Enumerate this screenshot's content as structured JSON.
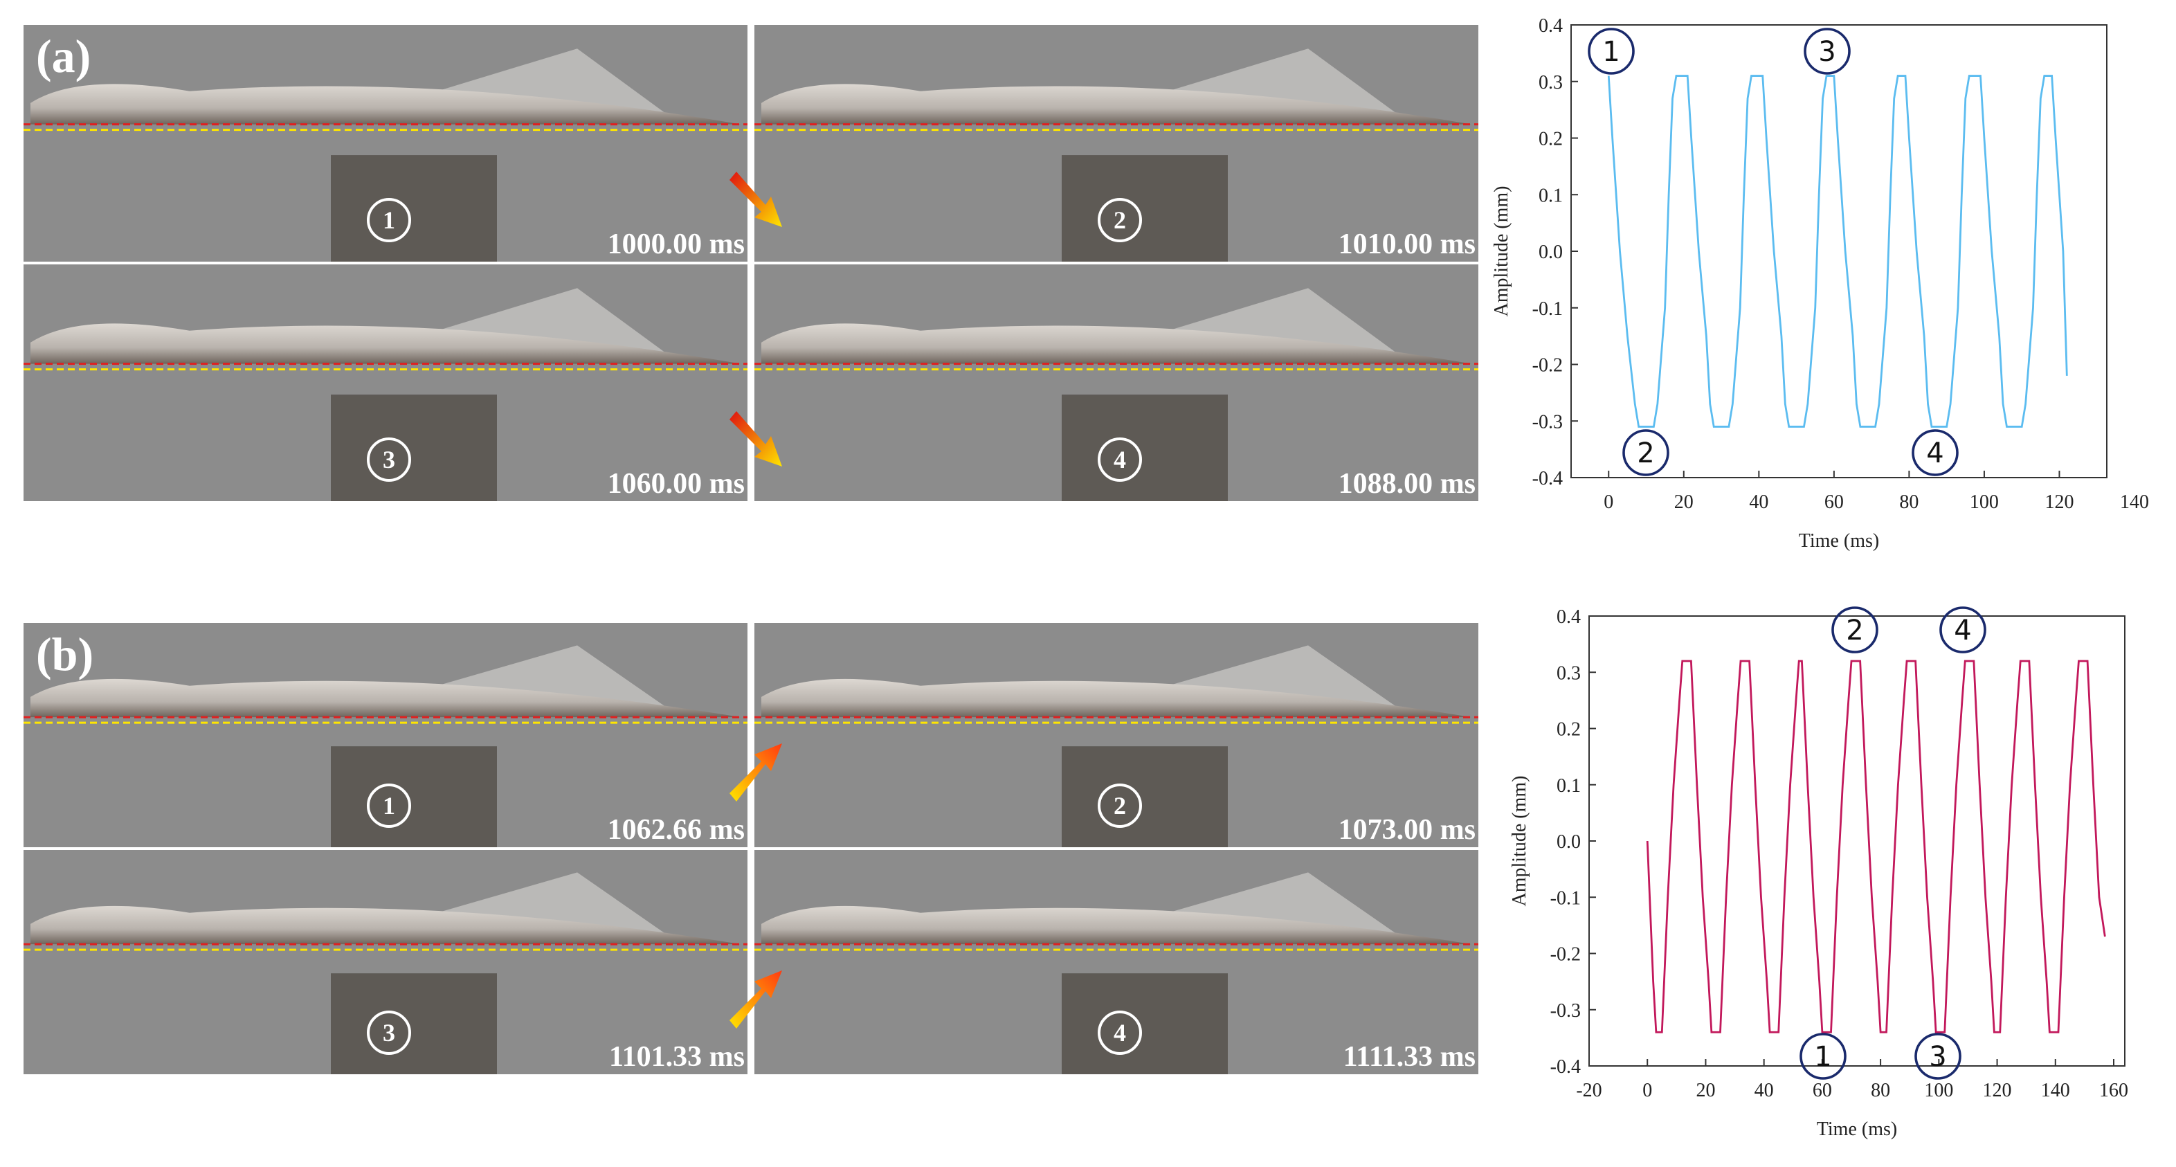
{
  "panels": [
    {
      "label": "(a)",
      "frames": [
        {
          "number": "1",
          "time": "1000.00 ms"
        },
        {
          "number": "2",
          "time": "1010.00 ms"
        },
        {
          "number": "3",
          "time": "1060.00 ms"
        },
        {
          "number": "4",
          "time": "1088.00 ms"
        }
      ]
    },
    {
      "label": "(b)",
      "frames": [
        {
          "number": "1",
          "time": "1062.66 ms"
        },
        {
          "number": "2",
          "time": "1073.00 ms"
        },
        {
          "number": "3",
          "time": "1101.33 ms"
        },
        {
          "number": "4",
          "time": "1111.33 ms"
        }
      ]
    }
  ],
  "chart_data": [
    {
      "type": "line",
      "x_label": "Time (ms)",
      "y_label": "Amplitude (mm)",
      "x": [
        0,
        1,
        3,
        5,
        7,
        8,
        12,
        13,
        15,
        16,
        17,
        18,
        21,
        22,
        24,
        26,
        27,
        28,
        32,
        33,
        35,
        36,
        37,
        38,
        41,
        42,
        44,
        46,
        47,
        48,
        52,
        53,
        55,
        56,
        57,
        58,
        60,
        61,
        63,
        65,
        66,
        67,
        71,
        72,
        74,
        75,
        76,
        77,
        79,
        80,
        82,
        84,
        85,
        86,
        90,
        91,
        93,
        94,
        95,
        96,
        99,
        100,
        102,
        104,
        105,
        106,
        110,
        111,
        113,
        114,
        115,
        116,
        118,
        119,
        121,
        122
      ],
      "series": [
        {
          "color": "#5bbcf0",
          "values": [
            0.31,
            0.2,
            0.0,
            -0.15,
            -0.27,
            -0.31,
            -0.31,
            -0.27,
            -0.1,
            0.1,
            0.27,
            0.31,
            0.31,
            0.2,
            0.0,
            -0.15,
            -0.27,
            -0.31,
            -0.31,
            -0.27,
            -0.1,
            0.1,
            0.27,
            0.31,
            0.31,
            0.2,
            0.0,
            -0.15,
            -0.27,
            -0.31,
            -0.31,
            -0.27,
            -0.1,
            0.1,
            0.27,
            0.31,
            0.31,
            0.2,
            0.0,
            -0.15,
            -0.27,
            -0.31,
            -0.31,
            -0.27,
            -0.1,
            0.1,
            0.27,
            0.31,
            0.31,
            0.2,
            0.0,
            -0.15,
            -0.27,
            -0.31,
            -0.31,
            -0.27,
            -0.1,
            0.1,
            0.27,
            0.31,
            0.31,
            0.2,
            0.0,
            -0.15,
            -0.27,
            -0.31,
            -0.31,
            -0.27,
            -0.1,
            0.1,
            0.27,
            0.31,
            0.31,
            0.2,
            0.0,
            -0.22
          ]
        }
      ],
      "xlim": [
        -10,
        140
      ],
      "ylim": [
        -0.4,
        0.4
      ],
      "xticks": [
        0,
        20,
        40,
        60,
        80,
        100,
        120,
        140
      ],
      "yticks": [
        -0.4,
        -0.3,
        -0.2,
        -0.1,
        {
          "value": 0,
          "label": "0.0"
        },
        0.1,
        0.2,
        0.3,
        0.4
      ],
      "annotations": [
        "1",
        "2",
        "3",
        "4"
      ]
    },
    {
      "type": "line",
      "x_label": "Time (ms)",
      "y_label": "Amplitude (mm)",
      "x": [
        0,
        2,
        3,
        5,
        7,
        9,
        11,
        12,
        15,
        17,
        19,
        21,
        22,
        25,
        27,
        29,
        31,
        32,
        35,
        37,
        39,
        41,
        42,
        45,
        47,
        49,
        51,
        52,
        53,
        55,
        57,
        59,
        60,
        63,
        65,
        67,
        69,
        70,
        73,
        75,
        77,
        79,
        80,
        82,
        84,
        86,
        88,
        89,
        92,
        94,
        96,
        98,
        99,
        102,
        104,
        106,
        108,
        109,
        112,
        114,
        116,
        118,
        119,
        121,
        123,
        125,
        127,
        128,
        131,
        133,
        135,
        137,
        138,
        141,
        143,
        145,
        147,
        148,
        151,
        153,
        155,
        157
      ],
      "series": [
        {
          "color": "#c2185b",
          "values": [
            0,
            -0.25,
            -0.34,
            -0.34,
            -0.1,
            0.1,
            0.25,
            0.32,
            0.32,
            0.1,
            -0.1,
            -0.25,
            -0.34,
            -0.34,
            -0.1,
            0.1,
            0.25,
            0.32,
            0.32,
            0.1,
            -0.1,
            -0.25,
            -0.34,
            -0.34,
            -0.1,
            0.1,
            0.25,
            0.32,
            0.32,
            0.1,
            -0.1,
            -0.25,
            -0.34,
            -0.34,
            -0.1,
            0.1,
            0.25,
            0.32,
            0.32,
            0.1,
            -0.1,
            -0.25,
            -0.34,
            -0.34,
            -0.1,
            0.1,
            0.25,
            0.32,
            0.32,
            0.1,
            -0.1,
            -0.25,
            -0.34,
            -0.34,
            -0.1,
            0.1,
            0.25,
            0.32,
            0.32,
            0.1,
            -0.1,
            -0.25,
            -0.34,
            -0.34,
            -0.1,
            0.1,
            0.25,
            0.32,
            0.32,
            0.1,
            -0.1,
            -0.25,
            -0.34,
            -0.34,
            -0.1,
            0.1,
            0.25,
            0.32,
            0.32,
            0.1,
            -0.1,
            -0.17
          ]
        }
      ],
      "xlim": [
        -20,
        160
      ],
      "ylim": [
        -0.4,
        0.4
      ],
      "xticks": [
        -20,
        0,
        20,
        40,
        60,
        80,
        100,
        120,
        140,
        160
      ],
      "yticks": [
        -0.4,
        -0.3,
        -0.2,
        -0.1,
        {
          "value": 0,
          "label": "0.0"
        },
        0.1,
        0.2,
        0.3,
        0.4
      ],
      "annotations": [
        "1",
        "2",
        "3",
        "4"
      ]
    }
  ]
}
